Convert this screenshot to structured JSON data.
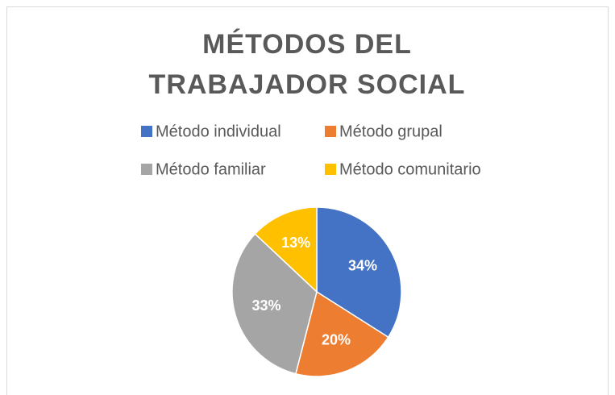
{
  "chart_data": {
    "type": "pie",
    "title": "MÉTODOS DEL TRABAJADOR SOCIAL",
    "categories": [
      "Método individual",
      "Método grupal",
      "Método familiar",
      "Método comunitario"
    ],
    "values": [
      34,
      20,
      33,
      13
    ],
    "value_labels": [
      "34%",
      "20%",
      "33%",
      "13%"
    ],
    "colors": [
      "#4472c4",
      "#ed7d31",
      "#a5a5a5",
      "#ffc000"
    ],
    "legend": "top"
  }
}
